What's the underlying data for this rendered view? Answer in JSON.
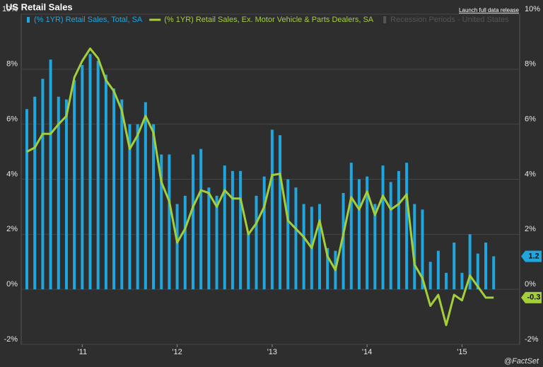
{
  "chart_data": {
    "type": "bar_line",
    "title": "US Retail Sales",
    "link": "Launch full data release",
    "recession_legend": "Recession Periods - United States",
    "source": "@FactSet",
    "categories": [
      null,
      null,
      null,
      null,
      null,
      null,
      null,
      "'11",
      null,
      null,
      null,
      null,
      null,
      null,
      null,
      null,
      null,
      null,
      null,
      "'12",
      null,
      null,
      null,
      null,
      null,
      null,
      null,
      null,
      null,
      null,
      null,
      "'13",
      null,
      null,
      null,
      null,
      null,
      null,
      null,
      null,
      null,
      null,
      null,
      "'14",
      null,
      null,
      null,
      null,
      null,
      null,
      null,
      null,
      null,
      null,
      null,
      "'15",
      null,
      null,
      null,
      null
    ],
    "series": [
      {
        "name": "(% 1YR) Retail Sales, Total, SA",
        "color": "#1fa6df",
        "kind": "bar",
        "values": [
          6.55,
          7.0,
          7.65,
          8.35,
          7.0,
          6.9,
          7.6,
          8.15,
          8.55,
          8.3,
          7.8,
          7.3,
          6.9,
          6.0,
          6.0,
          6.8,
          6.0,
          4.9,
          4.9,
          3.1,
          3.4,
          4.9,
          5.1,
          3.7,
          3.4,
          4.5,
          4.3,
          4.3,
          2.1,
          3.4,
          4.1,
          5.8,
          5.6,
          4.0,
          3.7,
          3.1,
          3.0,
          3.1,
          1.5,
          1.4,
          3.5,
          4.6,
          4.0,
          4.1,
          3.1,
          4.5,
          3.9,
          4.3,
          4.6,
          3.1,
          2.9,
          1.0,
          1.4,
          0.6,
          1.7,
          0.6,
          2.0,
          1.3,
          1.7,
          1.2
        ]
      },
      {
        "name": "(% 1YR) Retail Sales, Ex. Motor Vehicle & Parts Dealers, SA",
        "color": "#a3cf3a",
        "kind": "line",
        "values": [
          5.0,
          5.15,
          5.65,
          5.65,
          6.0,
          6.3,
          7.7,
          8.3,
          8.75,
          8.4,
          7.6,
          7.2,
          6.5,
          5.1,
          5.6,
          6.3,
          5.7,
          3.9,
          3.2,
          1.7,
          2.2,
          3.0,
          3.6,
          3.5,
          3.0,
          3.6,
          3.3,
          3.3,
          2.0,
          2.4,
          3.0,
          4.15,
          4.2,
          2.5,
          2.2,
          1.9,
          1.5,
          2.5,
          1.2,
          0.7,
          2.0,
          3.35,
          2.9,
          3.55,
          2.7,
          3.4,
          2.9,
          3.1,
          3.45,
          0.9,
          0.4,
          -0.6,
          -0.2,
          -1.3,
          -0.2,
          -0.4,
          0.5,
          0.1,
          -0.3,
          -0.3
        ]
      }
    ],
    "ylim": [
      -2,
      10
    ],
    "yticks": [
      {
        "value": -2,
        "label": "-2%"
      },
      {
        "value": 0,
        "label": "0%"
      },
      {
        "value": 2,
        "label": "2%"
      },
      {
        "value": 4,
        "label": "4%"
      },
      {
        "value": 6,
        "label": "6%"
      },
      {
        "value": 8,
        "label": "8%"
      },
      {
        "value": 10,
        "label": "10%"
      }
    ],
    "y2lim": [
      -2,
      10
    ],
    "y2ticks": [
      {
        "value": -2,
        "label": "-2%"
      },
      {
        "value": 0,
        "label": "0%"
      },
      {
        "value": 2,
        "label": "2%"
      },
      {
        "value": 4,
        "label": "4%"
      },
      {
        "value": 6,
        "label": "6%"
      },
      {
        "value": 8,
        "label": "8%"
      },
      {
        "value": 10,
        "label": "10%"
      }
    ],
    "grid": true
  }
}
